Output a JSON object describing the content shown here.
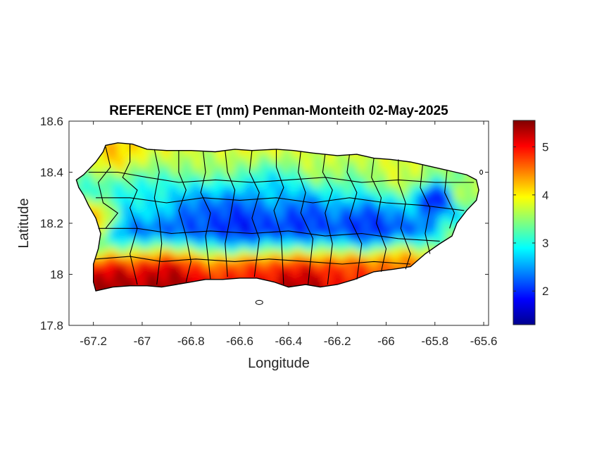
{
  "chart_data": {
    "type": "heatmap",
    "title": "REFERENCE ET (mm) Penman-Monteith 02-May-2025",
    "xlabel": "Longitude",
    "ylabel": "Latitude",
    "xlim": [
      -67.3,
      -65.58
    ],
    "ylim": [
      17.8,
      18.6
    ],
    "x_ticks": [
      -67.2,
      -67,
      -66.8,
      -66.6,
      -66.4,
      -66.2,
      -66,
      -65.8,
      -65.6
    ],
    "x_tick_labels": [
      "-67.2",
      "-67",
      "-66.8",
      "-66.6",
      "-66.4",
      "-66.2",
      "-66",
      "-65.8",
      "-65.6"
    ],
    "y_ticks": [
      17.8,
      18,
      18.2,
      18.4,
      18.6
    ],
    "y_tick_labels": [
      "17.8",
      "18",
      "18.2",
      "18.4",
      "18.6"
    ],
    "colorbar": {
      "colormap": "jet",
      "min": 1.3,
      "max": 5.55,
      "ticks": [
        2,
        3,
        4,
        5
      ],
      "tick_labels": [
        "2",
        "3",
        "4",
        "5"
      ]
    },
    "grid": false,
    "legend": "none",
    "spatial_pattern": [
      {
        "region": "south coast",
        "approx_value": 5.2
      },
      {
        "region": "southwest coast",
        "approx_value": 5.4
      },
      {
        "region": "west coast",
        "approx_value": 4.6
      },
      {
        "region": "north coast",
        "approx_value": 3.8
      },
      {
        "region": "northwest corner",
        "approx_value": 4.0
      },
      {
        "region": "central mountains",
        "approx_value": 2.0
      },
      {
        "region": "eastern interior",
        "approx_value": 1.8
      },
      {
        "region": "northeast (El Yunque)",
        "approx_value": 1.5
      },
      {
        "region": "east coast",
        "approx_value": 3.8
      },
      {
        "region": "southeast coast",
        "approx_value": 4.5
      }
    ]
  }
}
